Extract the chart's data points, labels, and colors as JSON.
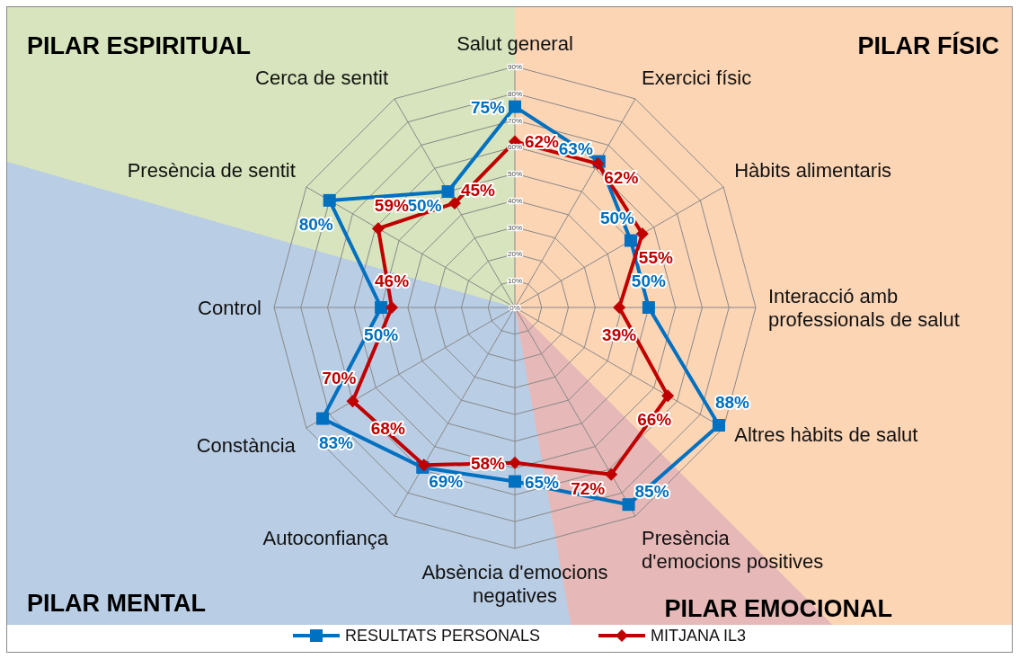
{
  "chart_data": {
    "type": "radar",
    "categories": [
      "Salut general",
      "Exercici físic",
      "Hàbits alimentaris",
      "Interacció amb professionals de salut",
      "Altres hàbits de salut",
      "Presència d'emocions positives",
      "Absència d'emocions negatives",
      "Autoconfiança",
      "Constància",
      "Control",
      "Presència de sentit",
      "Cerca de sentit"
    ],
    "series": [
      {
        "name": "RESULTATS PERSONALS",
        "color": "#0070c0",
        "marker": "square",
        "values": [
          75,
          63,
          50,
          50,
          88,
          85,
          65,
          69,
          83,
          50,
          80,
          50
        ],
        "value_labels": [
          "75%",
          "63%",
          "50%",
          "50%",
          "88%",
          "85%",
          "65%",
          "69%",
          "83%",
          "50%",
          "80%",
          "50%"
        ]
      },
      {
        "name": "MITJANA IL3",
        "color": "#c00000",
        "marker": "diamond",
        "values": [
          62,
          62,
          55,
          39,
          66,
          72,
          58,
          68,
          70,
          46,
          59,
          45
        ],
        "value_labels": [
          "62%",
          "62%",
          "55%",
          "39%",
          "66%",
          "72%",
          "58%",
          "68%",
          "70%",
          "46%",
          "59%",
          "45%"
        ]
      }
    ],
    "ylim": [
      0,
      90
    ],
    "yticks": [
      {
        "value": 0,
        "label": "0%"
      },
      {
        "value": 10,
        "label": "10%"
      },
      {
        "value": 20,
        "label": "20%"
      },
      {
        "value": 30,
        "label": "30%"
      },
      {
        "value": 40,
        "label": "40%"
      },
      {
        "value": 50,
        "label": "50%"
      },
      {
        "value": 60,
        "label": "60%"
      },
      {
        "value": 70,
        "label": "70%"
      },
      {
        "value": 80,
        "label": "80%"
      },
      {
        "value": 90,
        "label": "90%"
      }
    ],
    "grid": true,
    "legend": "bottom",
    "annotations": [
      "PILAR ESPIRITUAL",
      "PILAR FÍSIC",
      "PILAR MENTAL",
      "PILAR EMOCIONAL"
    ]
  }
}
